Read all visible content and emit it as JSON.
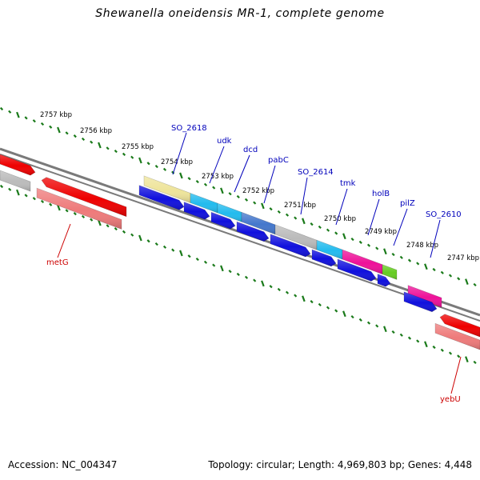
{
  "title": "Shewanella oneidensis MR-1, complete genome",
  "footer": {
    "accession": "Accession: NC_004347",
    "topology": "Topology: circular; Length: 4,969,803 bp; Genes: 4,448"
  },
  "scale_labels": [
    "2757 kbp",
    "2756 kbp",
    "2755 kbp",
    "2754 kbp",
    "2753 kbp",
    "2752 kbp",
    "2751 kbp",
    "2750 kbp",
    "2749 kbp",
    "2748 kbp",
    "2747 kbp"
  ],
  "gene_labels_top": [
    "SO_2618",
    "udk",
    "dcd",
    "pabC",
    "SO_2614",
    "tmk",
    "holB",
    "pilZ",
    "SO_2610"
  ],
  "gene_labels_bottom": [
    "metG",
    "yebU"
  ],
  "colors": {
    "backbone": "#7a7a7a",
    "scale_ticks": "#1a7a1a",
    "cds": "#1010dd",
    "label_top": "#0000bb",
    "label_bottom": "#cc0000",
    "red": "#ee0000",
    "pink": "#ee7a7a",
    "gray": "#bbbbbb",
    "yellow": "#eee49a",
    "cyan": "#22bbee",
    "steel": "#4477cc",
    "magenta": "#ee1199",
    "green": "#66cc22"
  }
}
